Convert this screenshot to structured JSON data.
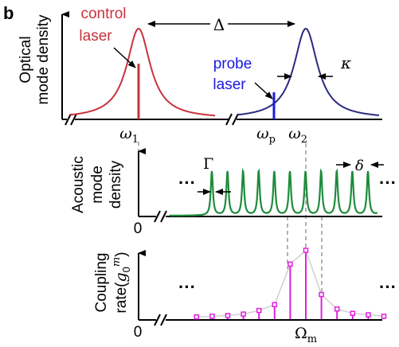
{
  "panel_label": "b",
  "colors": {
    "control": "#c8323c",
    "probe": "#1a1ae0",
    "optical2": "#2a2a80",
    "acoustic": "#1e8c3c",
    "coupling": "#e020e0",
    "dashed": "#999999",
    "axis": "#000000"
  },
  "top": {
    "ylabel_line1": "Optical",
    "ylabel_line2": "mode density",
    "control_label_line1": "control",
    "control_label_line2": "laser",
    "probe_label_line1": "probe",
    "probe_label_line2": "laser",
    "delta": "Δ",
    "kappa": "κ",
    "omega1": "ω",
    "omega1_sub": "1",
    "omega_p": "ω",
    "omega_p_sub": "p",
    "omega2": "ω",
    "omega2_sub": "2"
  },
  "middle": {
    "ylabel_line1": "Acoustic",
    "ylabel_line2": "mode",
    "ylabel_line3": "density",
    "gamma": "Γ",
    "delta_small": "δ",
    "dots_left": "···",
    "dots_right": "···",
    "zero": "0"
  },
  "bottom": {
    "ylabel_line1": "Coupling",
    "ylabel_line2": "rate(",
    "g": "g",
    "g_sub": "0",
    "g_sup": "m",
    "ylabel_close": ")",
    "dots_left": "···",
    "dots_right": "···",
    "zero": "0",
    "omega_m": "Ω",
    "omega_m_sub": "m"
  },
  "chart_data": {
    "type": "scatter",
    "series": [
      {
        "x": [
          -7,
          -6,
          -5,
          -4,
          -3,
          -2,
          -1,
          0,
          1,
          2,
          3,
          4,
          5
        ],
        "y": [
          0.03,
          0.04,
          0.05,
          0.07,
          0.12,
          0.2,
          0.76,
          0.95,
          0.34,
          0.14,
          0.08,
          0.06,
          0.04
        ]
      }
    ]
  }
}
